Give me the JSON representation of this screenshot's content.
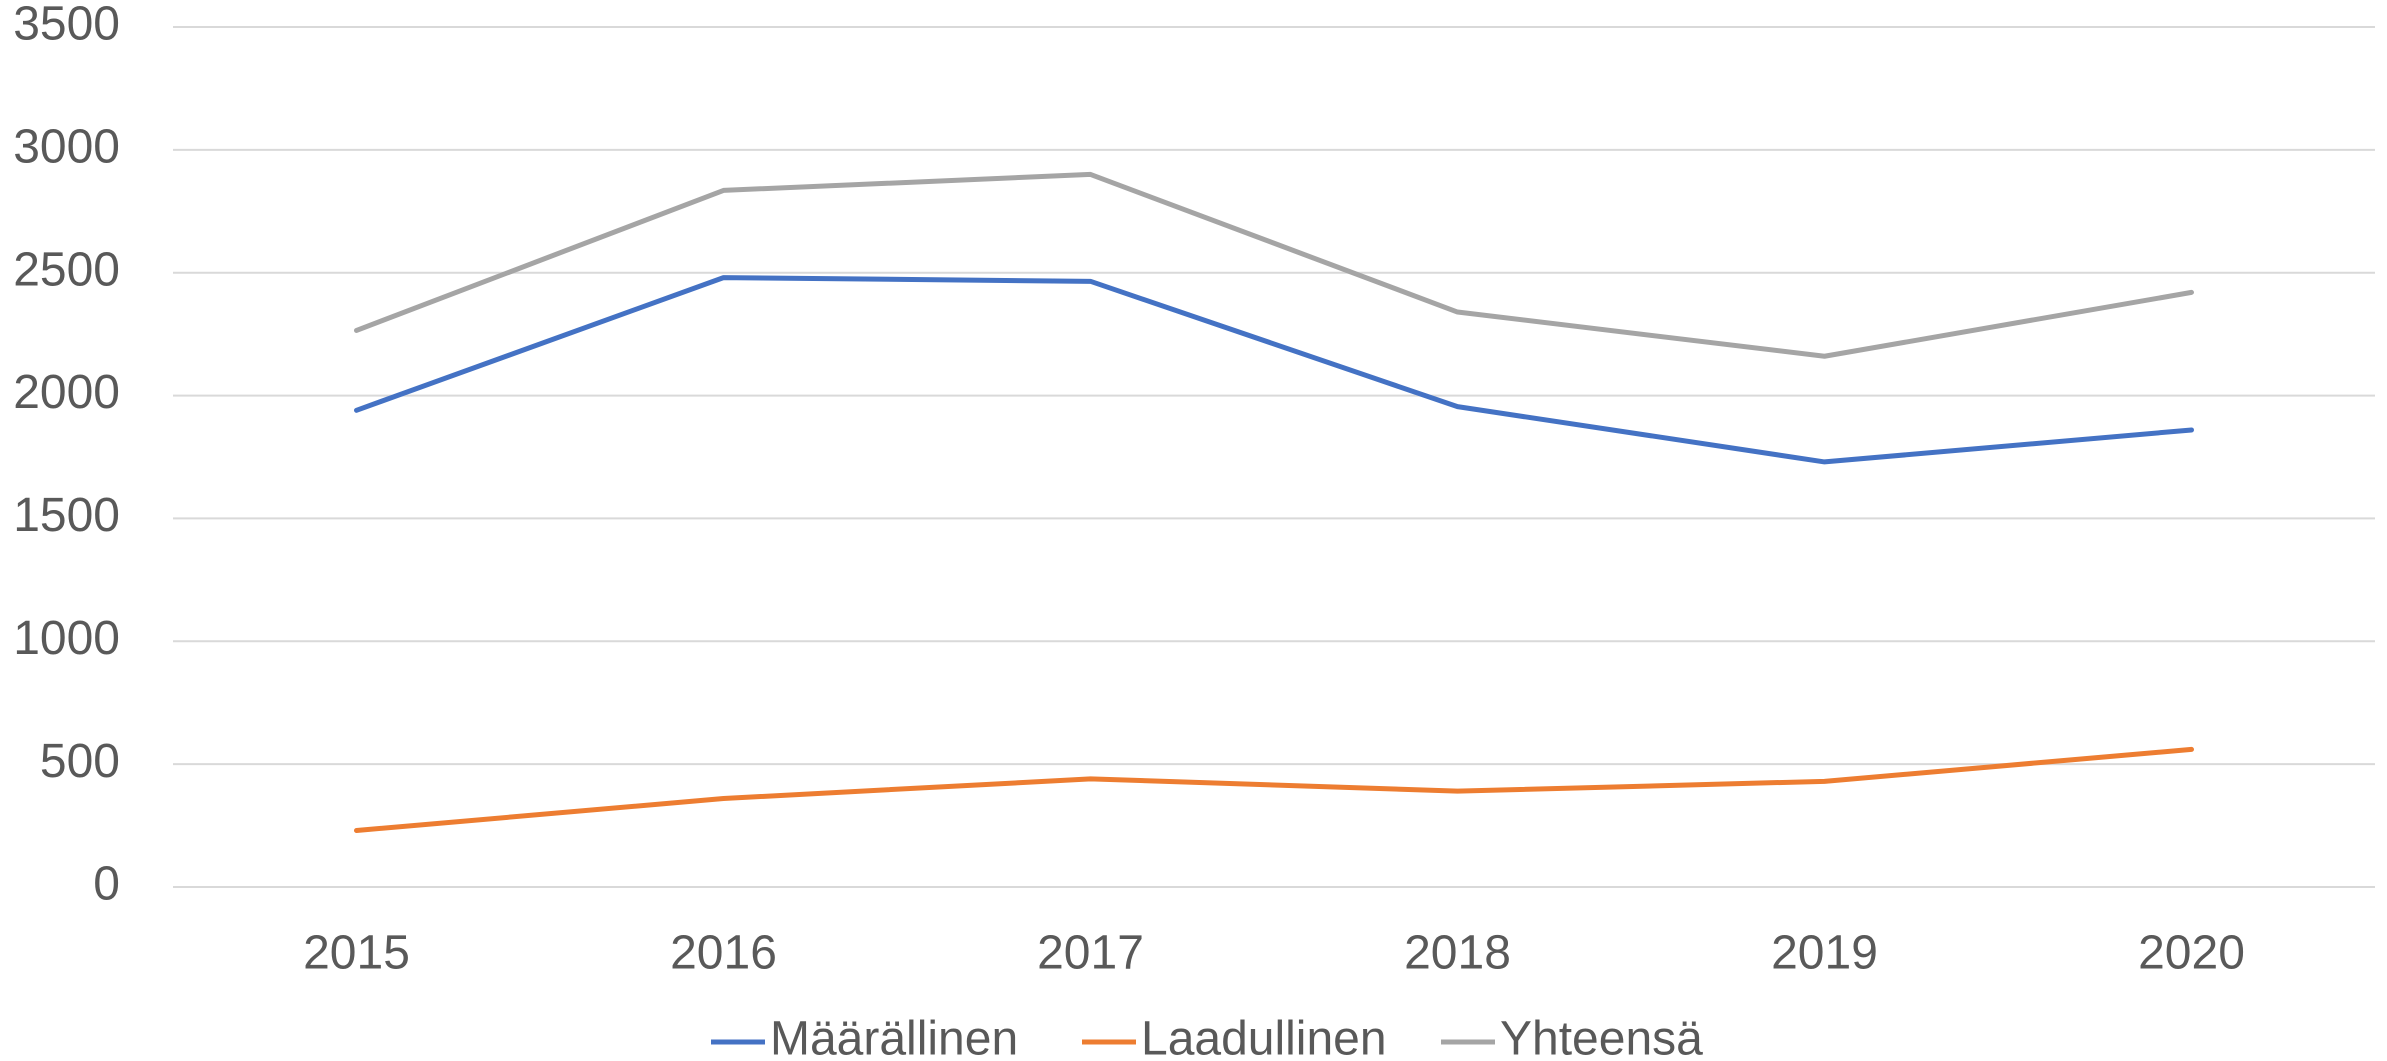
{
  "chart_data": {
    "type": "line",
    "categories": [
      "2015",
      "2016",
      "2017",
      "2018",
      "2019",
      "2020"
    ],
    "series": [
      {
        "name": "Määrällinen",
        "color": "#4472c4",
        "values": [
          1940,
          2480,
          2465,
          1955,
          1730,
          1860
        ]
      },
      {
        "name": "Laadullinen",
        "color": "#ed7d31",
        "values": [
          230,
          360,
          440,
          390,
          430,
          560
        ]
      },
      {
        "name": "Yhteensä",
        "color": "#a5a5a5",
        "values": [
          2265,
          2835,
          2900,
          2340,
          2160,
          2420
        ]
      }
    ],
    "ylim": [
      0,
      3500
    ],
    "yticks": [
      0,
      500,
      1000,
      1500,
      2000,
      2500,
      3000,
      3500
    ],
    "grid": true,
    "legend": "bottom"
  }
}
